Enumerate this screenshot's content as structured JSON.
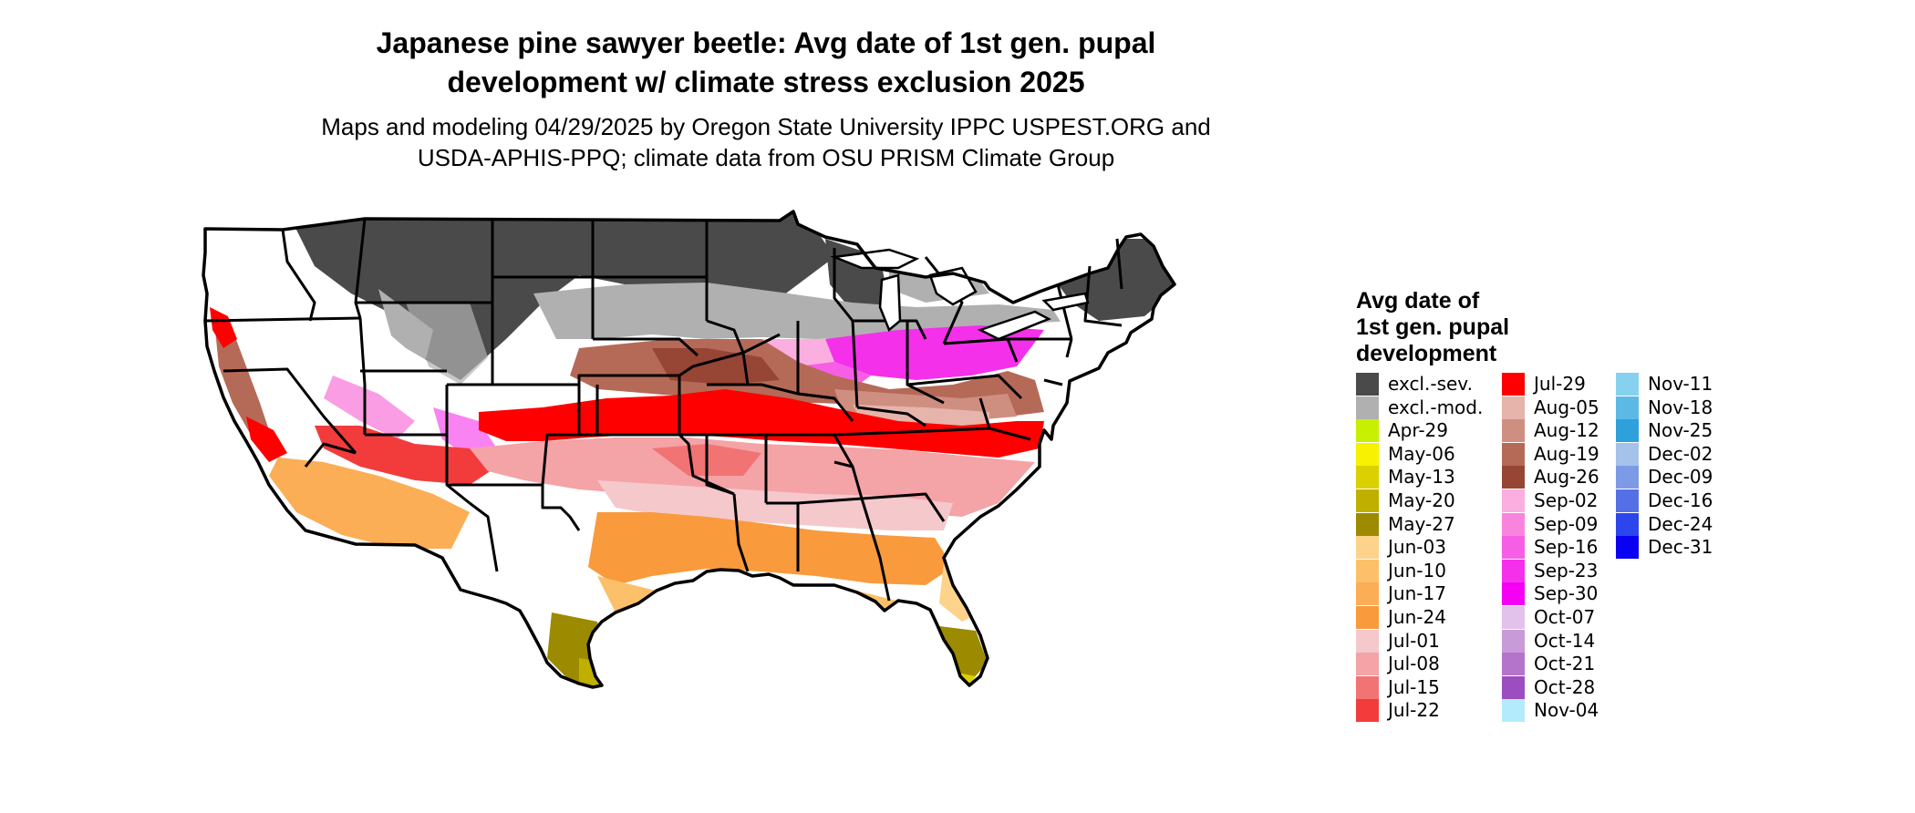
{
  "header": {
    "title_line1": "Japanese pine sawyer beetle: Avg date of 1st gen. pupal",
    "title_line2": "development w/ climate stress exclusion 2025",
    "subtitle_line1": "Maps and modeling 04/29/2025 by Oregon State University IPPC USPEST.ORG and",
    "subtitle_line2": "USDA-APHIS-PPQ; climate data from OSU PRISM Climate Group"
  },
  "legend": {
    "title_line1": "Avg date of",
    "title_line2": "1st gen. pupal",
    "title_line3": "development",
    "columns": [
      [
        {
          "label": "excl.-sev.",
          "color": "#4a4a4a"
        },
        {
          "label": "excl.-mod.",
          "color": "#b0b0b0"
        },
        {
          "label": "Apr-29",
          "color": "#c6f000"
        },
        {
          "label": "May-06",
          "color": "#f6f200"
        },
        {
          "label": "May-13",
          "color": "#dbd000"
        },
        {
          "label": "May-20",
          "color": "#bfb000"
        },
        {
          "label": "May-27",
          "color": "#9c8a00"
        },
        {
          "label": "Jun-03",
          "color": "#fdd28a"
        },
        {
          "label": "Jun-10",
          "color": "#fcc06a"
        },
        {
          "label": "Jun-17",
          "color": "#fbae55"
        },
        {
          "label": "Jun-24",
          "color": "#f99a3c"
        },
        {
          "label": "Jul-01",
          "color": "#f5c8cc"
        },
        {
          "label": "Jul-08",
          "color": "#f4a3a6"
        },
        {
          "label": "Jul-15",
          "color": "#f27373"
        },
        {
          "label": "Jul-22",
          "color": "#f23c3c"
        }
      ],
      [
        {
          "label": "Jul-29",
          "color": "#fe0000"
        },
        {
          "label": "Aug-05",
          "color": "#e6b4aa"
        },
        {
          "label": "Aug-12",
          "color": "#cf8f80"
        },
        {
          "label": "Aug-19",
          "color": "#b56a58"
        },
        {
          "label": "Aug-26",
          "color": "#974535"
        },
        {
          "label": "Sep-02",
          "color": "#fbaee0"
        },
        {
          "label": "Sep-09",
          "color": "#f984dd"
        },
        {
          "label": "Sep-16",
          "color": "#f75ee6"
        },
        {
          "label": "Sep-23",
          "color": "#f530ea"
        },
        {
          "label": "Sep-30",
          "color": "#f500f5"
        },
        {
          "label": "Oct-07",
          "color": "#e2c2ea"
        },
        {
          "label": "Oct-14",
          "color": "#c89ad8"
        },
        {
          "label": "Oct-21",
          "color": "#b574cc"
        },
        {
          "label": "Oct-28",
          "color": "#9c4ec0"
        },
        {
          "label": "Nov-04",
          "color": "#b3ebfc"
        }
      ],
      [
        {
          "label": "Nov-11",
          "color": "#86d1f0"
        },
        {
          "label": "Nov-18",
          "color": "#5cb9e6"
        },
        {
          "label": "Nov-25",
          "color": "#2ea0dc"
        },
        {
          "label": "Dec-02",
          "color": "#a5c2ea"
        },
        {
          "label": "Dec-09",
          "color": "#7d9ae6"
        },
        {
          "label": "Dec-16",
          "color": "#5570e6"
        },
        {
          "label": "Dec-24",
          "color": "#2c46ec"
        },
        {
          "label": "Dec-31",
          "color": "#0a00f2"
        }
      ]
    ]
  }
}
